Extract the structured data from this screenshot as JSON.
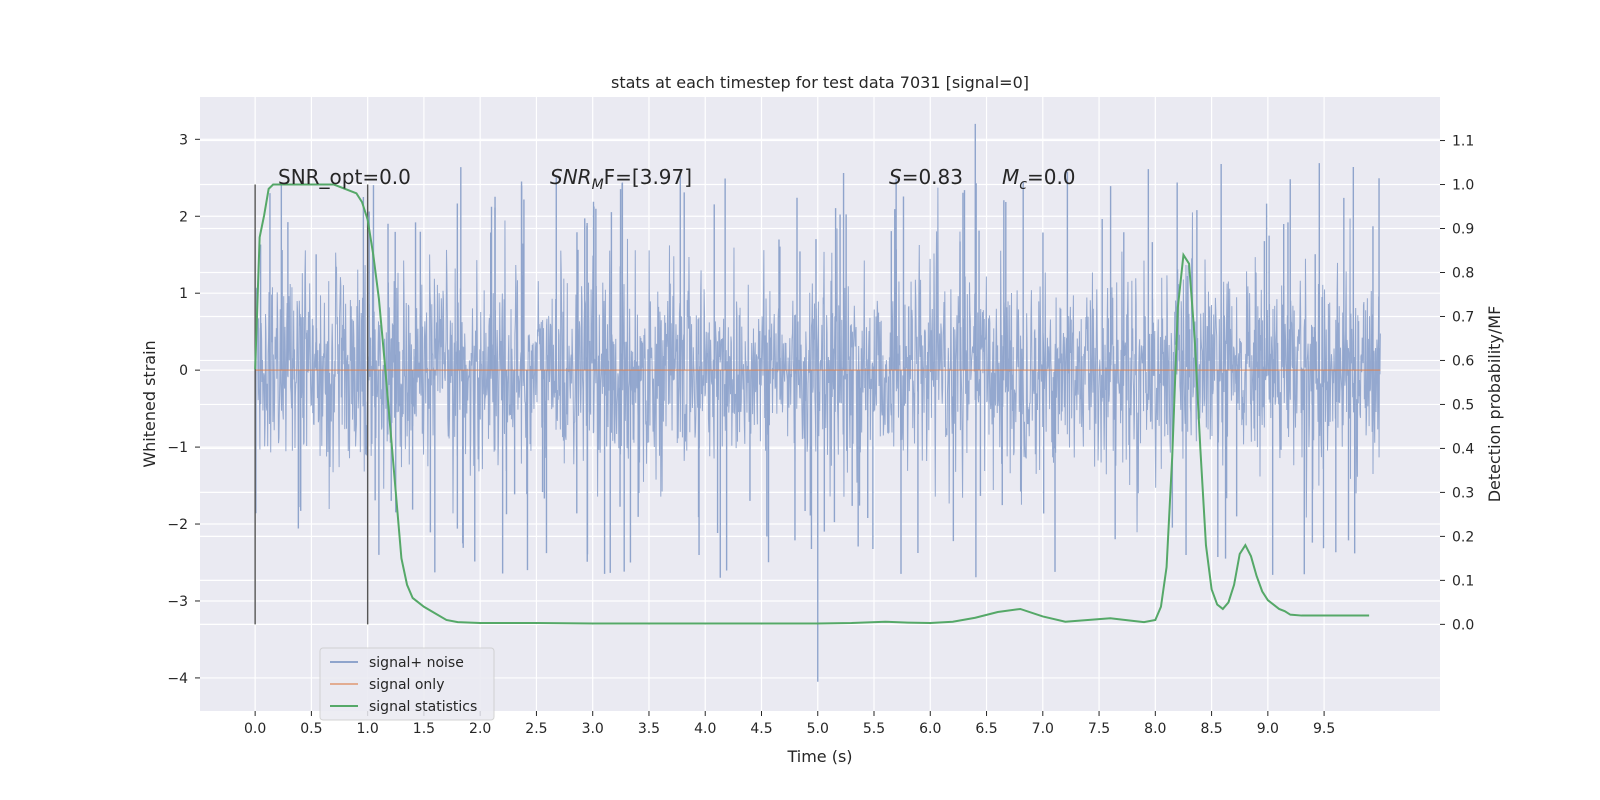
{
  "chart_data": {
    "type": "line",
    "title": "stats at each timestep for test data 7031 [signal=0]",
    "xlabel": "Time (s)",
    "ylabel": "Whitened strain",
    "y2label": "Detection probability/MF",
    "xlim": [
      -0.49,
      10.53
    ],
    "ylim": [
      -4.43,
      3.55
    ],
    "y2lim": [
      -0.197,
      1.199
    ],
    "x_ticks": [
      "0.0",
      "0.5",
      "1.0",
      "1.5",
      "2.0",
      "2.5",
      "3.0",
      "3.5",
      "4.0",
      "4.5",
      "5.0",
      "5.5",
      "6.0",
      "6.5",
      "7.0",
      "7.5",
      "8.0",
      "8.5",
      "9.0",
      "9.5"
    ],
    "y_ticks": [
      "3",
      "2",
      "1",
      "0",
      "−1",
      "−2",
      "−3",
      "−4"
    ],
    "y2_ticks": [
      "1.1",
      "1.0",
      "0.9",
      "0.8",
      "0.7",
      "0.6",
      "0.5",
      "0.4",
      "0.3",
      "0.2",
      "0.1",
      "0.0"
    ],
    "grid": true,
    "legend_position": "lower-left",
    "colors": {
      "noise": "#8fa4cc",
      "signal": "#dd8452",
      "stats": "#55a868",
      "background": "#eaeaf2",
      "marker": "#555555"
    },
    "annotations": [
      {
        "kind": "plain",
        "text": "SNR_opt=0.0"
      },
      {
        "kind": "snr_mf",
        "text": "SNR",
        "sub": "M",
        "after": "F=[3.97]"
      },
      {
        "kind": "s",
        "text": "S",
        "after": "=0.83"
      },
      {
        "kind": "mc",
        "text": "M",
        "sub": "c",
        "after": "=0.0"
      }
    ],
    "vertical_markers": [
      0.0,
      1.0
    ],
    "series": [
      {
        "name": "signal+ noise",
        "kind": "noise",
        "x_range": [
          0.0,
          10.0
        ],
        "y_range": [
          -4.05,
          3.2
        ]
      },
      {
        "name": "signal only",
        "kind": "flat",
        "x": [
          0.0,
          10.0
        ],
        "y": [
          0.0,
          0.0
        ]
      },
      {
        "name": "signal statistics",
        "axis": "right",
        "x": [
          0.0,
          0.04,
          0.08,
          0.12,
          0.16,
          0.2,
          0.3,
          0.4,
          0.5,
          0.6,
          0.7,
          0.8,
          0.9,
          0.95,
          1.0,
          1.05,
          1.1,
          1.15,
          1.2,
          1.25,
          1.3,
          1.35,
          1.4,
          1.5,
          1.6,
          1.7,
          1.8,
          2.0,
          2.5,
          3.0,
          3.5,
          4.0,
          4.5,
          5.0,
          5.3,
          5.6,
          5.8,
          6.0,
          6.2,
          6.4,
          6.6,
          6.8,
          7.0,
          7.2,
          7.4,
          7.6,
          7.8,
          7.9,
          8.0,
          8.05,
          8.1,
          8.15,
          8.2,
          8.25,
          8.3,
          8.35,
          8.4,
          8.45,
          8.5,
          8.55,
          8.6,
          8.65,
          8.7,
          8.75,
          8.8,
          8.85,
          8.9,
          8.95,
          9.0,
          9.05,
          9.1,
          9.15,
          9.2,
          9.3,
          9.4,
          9.5,
          9.6,
          9.7,
          9.8,
          9.9
        ],
        "y": [
          0.58,
          0.88,
          0.93,
          0.99,
          1.0,
          1.0,
          1.0,
          1.0,
          1.0,
          1.0,
          1.0,
          0.99,
          0.98,
          0.96,
          0.92,
          0.84,
          0.74,
          0.6,
          0.45,
          0.3,
          0.15,
          0.09,
          0.06,
          0.04,
          0.025,
          0.01,
          0.005,
          0.003,
          0.003,
          0.002,
          0.002,
          0.002,
          0.002,
          0.002,
          0.003,
          0.006,
          0.004,
          0.003,
          0.006,
          0.015,
          0.028,
          0.035,
          0.018,
          0.006,
          0.01,
          0.014,
          0.008,
          0.005,
          0.01,
          0.04,
          0.13,
          0.38,
          0.72,
          0.84,
          0.82,
          0.65,
          0.4,
          0.18,
          0.08,
          0.045,
          0.035,
          0.05,
          0.09,
          0.16,
          0.18,
          0.155,
          0.11,
          0.075,
          0.055,
          0.045,
          0.035,
          0.03,
          0.022,
          0.02,
          0.02,
          0.02,
          0.02,
          0.02,
          0.02,
          0.02
        ]
      }
    ]
  }
}
